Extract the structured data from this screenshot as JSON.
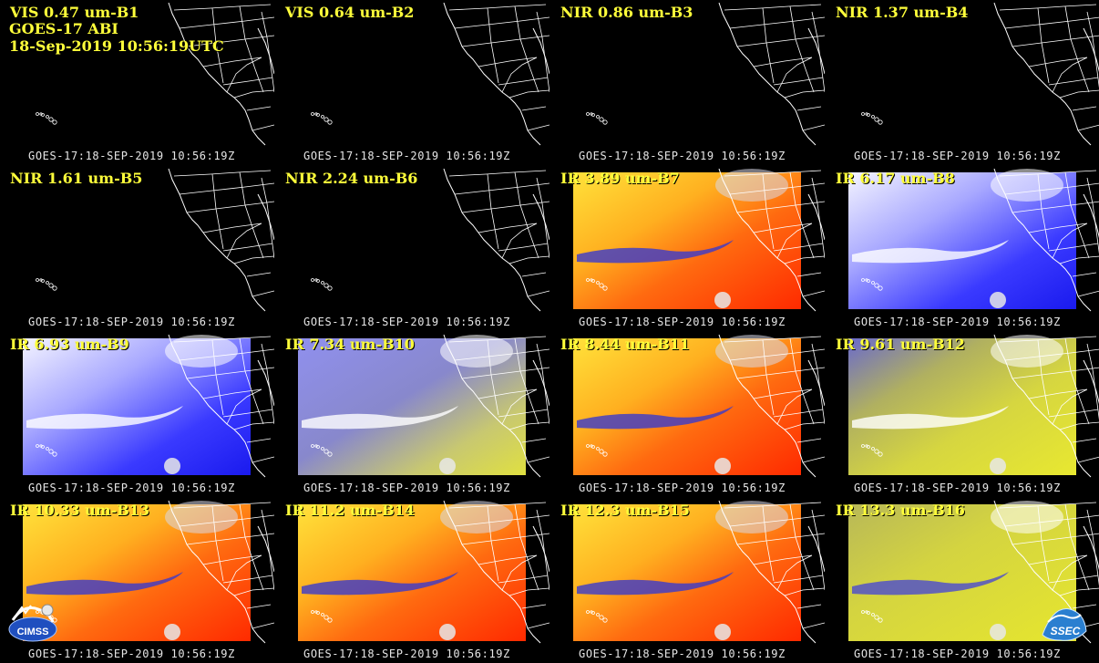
{
  "header": {
    "satellite": "GOES-17 ABI",
    "datetime": "18-Sep-2019 10:56:19UTC"
  },
  "timestamp": "GOES-17:18-SEP-2019 10:56:19Z",
  "colors": {
    "label": "#ffff3a",
    "stamp": "#e6e6e6",
    "map_lines": "#ffffff"
  },
  "panels": [
    {
      "label": "VIS 0.47 um-B1",
      "type": "dark"
    },
    {
      "label": "VIS 0.64 um-B2",
      "type": "dark"
    },
    {
      "label": "NIR 0.86 um-B3",
      "type": "dark"
    },
    {
      "label": "NIR 1.37 um-B4",
      "type": "dark"
    },
    {
      "label": "NIR 1.61 um-B5",
      "type": "dark"
    },
    {
      "label": "NIR 2.24 um-B6",
      "type": "dark"
    },
    {
      "label": "IR 3.89 um-B7",
      "type": "warm"
    },
    {
      "label": "IR 6.17 um-B8",
      "type": "wv"
    },
    {
      "label": "IR 6.93 um-B9",
      "type": "wv"
    },
    {
      "label": "IR 7.34 um-B10",
      "type": "wvy"
    },
    {
      "label": "IR 8.44 um-B11",
      "type": "warm"
    },
    {
      "label": "IR 9.61 um-B12",
      "type": "ozone"
    },
    {
      "label": "IR 10.33 um-B13",
      "type": "warm"
    },
    {
      "label": "IR 11.2 um-B14",
      "type": "warm"
    },
    {
      "label": "IR 12.3 um-B15",
      "type": "warm"
    },
    {
      "label": "IR 13.3 um-B16",
      "type": "co2"
    }
  ],
  "logos": {
    "cimss": "CIMSS",
    "ssec": "SSEC"
  }
}
